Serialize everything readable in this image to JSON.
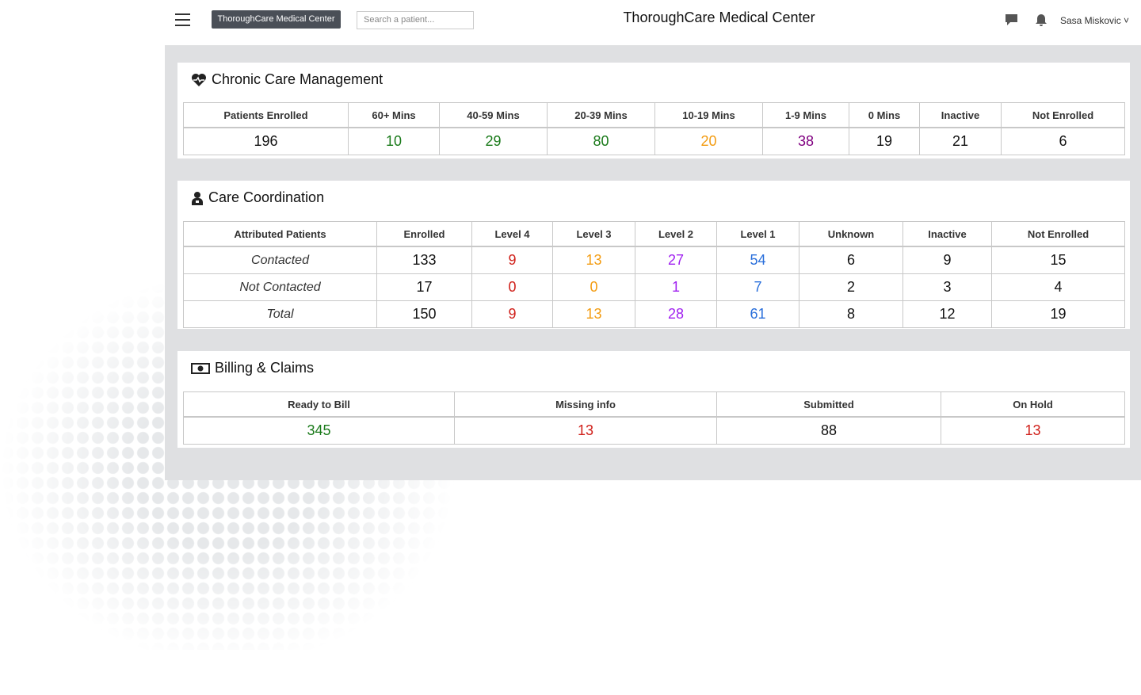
{
  "header": {
    "brand": "ThoroughCare Medical Center",
    "search_placeholder": "Search a patient...",
    "title": "ThoroughCare Medical Center",
    "user": "Sasa Miskovic"
  },
  "chronic_care": {
    "title": "Chronic Care Management",
    "columns": [
      "Patients Enrolled",
      "60+ Mins",
      "40-59 Mins",
      "20-39 Mins",
      "10-19 Mins",
      "1-9 Mins",
      "0 Mins",
      "Inactive",
      "Not Enrolled"
    ],
    "values": [
      196,
      10,
      29,
      80,
      20,
      38,
      19,
      21,
      6
    ]
  },
  "care_coordination": {
    "title": "Care Coordination",
    "columns": [
      "Attributed Patients",
      "Enrolled",
      "Level 4",
      "Level 3",
      "Level 2",
      "Level 1",
      "Unknown",
      "Inactive",
      "Not Enrolled"
    ],
    "rows": [
      {
        "label": "Contacted",
        "values": [
          133,
          9,
          13,
          27,
          54,
          6,
          9,
          15
        ]
      },
      {
        "label": "Not Contacted",
        "values": [
          17,
          0,
          0,
          1,
          7,
          2,
          3,
          4
        ]
      },
      {
        "label": "Total",
        "values": [
          150,
          9,
          13,
          28,
          61,
          8,
          12,
          19
        ]
      }
    ]
  },
  "billing": {
    "title": "Billing & Claims",
    "columns": [
      "Ready to Bill",
      "Missing info",
      "Submitted",
      "On Hold"
    ],
    "values": [
      345,
      13,
      88,
      13
    ]
  }
}
